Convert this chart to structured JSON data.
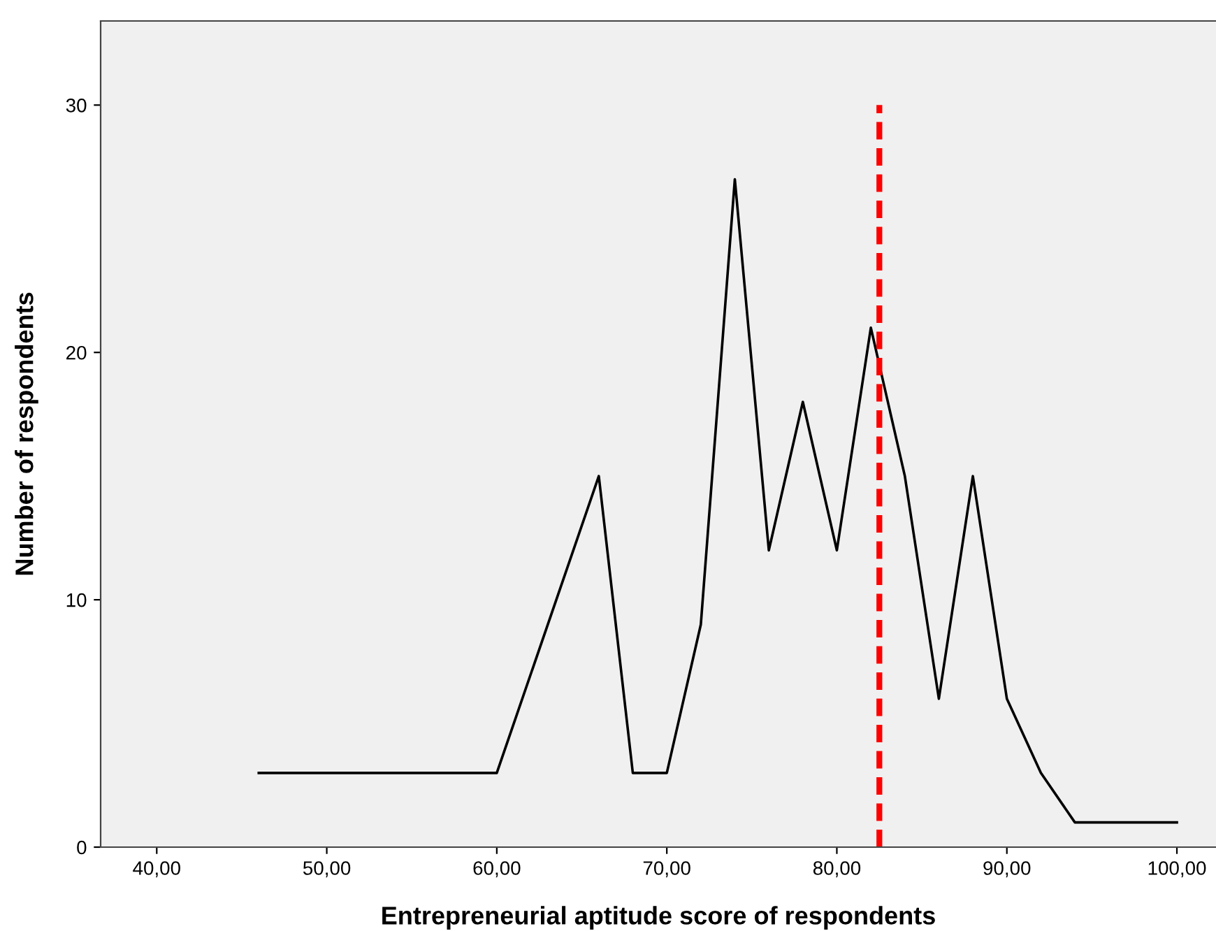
{
  "chart_data": {
    "type": "line",
    "xlabel": "Entrepreneurial aptitude score of respondents",
    "ylabel": "Number of respondents",
    "x": [
      46,
      60,
      66,
      68,
      70,
      72,
      74,
      76,
      78,
      80,
      82,
      84,
      86,
      88,
      90,
      92,
      94,
      100
    ],
    "series": [
      {
        "color": "#000000",
        "values": [
          3,
          3,
          15,
          3,
          3,
          9,
          27,
          12,
          18,
          12,
          21,
          15,
          6,
          15,
          6,
          3,
          1,
          1
        ]
      }
    ],
    "xlim": [
      36.7,
      102.3
    ],
    "ylim": [
      0,
      33.4
    ],
    "xticks": [
      {
        "value": 40,
        "label": "40,00"
      },
      {
        "value": 50,
        "label": "50,00"
      },
      {
        "value": 60,
        "label": "60,00"
      },
      {
        "value": 70,
        "label": "70,00"
      },
      {
        "value": 80,
        "label": "80,00"
      },
      {
        "value": 90,
        "label": "90,00"
      },
      {
        "value": 100,
        "label": "100,00"
      }
    ],
    "yticks": [
      0,
      10,
      20,
      30
    ],
    "ref_lines": [
      {
        "axis": "x",
        "value": 82.5,
        "color": "#ff0000",
        "line_style": "dashed"
      }
    ],
    "grid": false,
    "legend": false,
    "marker": "none",
    "line_style": "solid"
  }
}
